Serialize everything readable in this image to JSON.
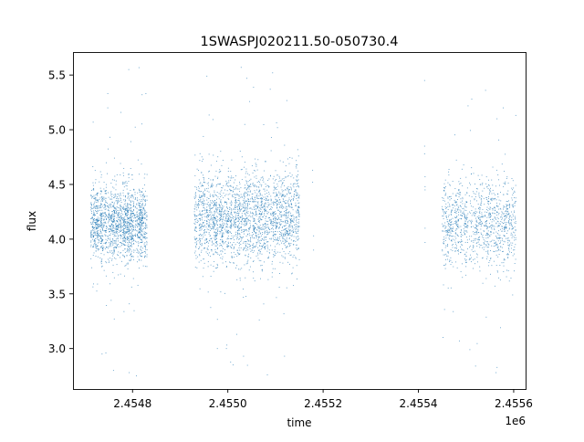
{
  "chart_data": {
    "type": "scatter",
    "title": "1SWASPJ020211.50-050730.4",
    "xlabel": "time",
    "ylabel": "flux",
    "x_offset_label": "1e6",
    "xlim": [
      2454675,
      2455625
    ],
    "ylim": [
      2.63,
      5.71
    ],
    "x_ticks": [
      {
        "value": 2454800,
        "label": "2.4548"
      },
      {
        "value": 2455000,
        "label": "2.4550"
      },
      {
        "value": 2455200,
        "label": "2.4552"
      },
      {
        "value": 2455400,
        "label": "2.4554"
      },
      {
        "value": 2455600,
        "label": "2.4556"
      }
    ],
    "y_ticks": [
      {
        "value": 3.0,
        "label": "3.0"
      },
      {
        "value": 3.5,
        "label": "3.5"
      },
      {
        "value": 4.0,
        "label": "4.0"
      },
      {
        "value": 4.5,
        "label": "4.5"
      },
      {
        "value": 5.0,
        "label": "5.0"
      },
      {
        "value": 5.5,
        "label": "5.5"
      }
    ],
    "grid": false,
    "marker_color": "#1f77b4",
    "clusters": [
      {
        "x_start": 2454713,
        "x_end": 2454830,
        "center": 4.15,
        "spread": 0.17,
        "density": 18
      },
      {
        "x_start": 2454930,
        "x_end": 2455150,
        "center": 4.2,
        "spread": 0.2,
        "density": 12
      },
      {
        "x_start": 2455450,
        "x_end": 2455607,
        "center": 4.15,
        "spread": 0.2,
        "density": 9
      }
    ],
    "points": [
      [
        2454792,
        5.55
      ],
      [
        2454748,
        5.33
      ],
      [
        2454748,
        5.2
      ],
      [
        2454820,
        5.32
      ],
      [
        2454828,
        5.33
      ],
      [
        2454793,
        2.78
      ],
      [
        2454808,
        2.75
      ],
      [
        2454760,
        2.8
      ],
      [
        2454736,
        2.95
      ],
      [
        2454744,
        2.96
      ],
      [
        2454956,
        5.49
      ],
      [
        2455028,
        5.57
      ],
      [
        2455040,
        5.47
      ],
      [
        2455094,
        5.52
      ],
      [
        2455089,
        5.37
      ],
      [
        2454978,
        3.0
      ],
      [
        2454997,
        3.0
      ],
      [
        2455033,
        2.93
      ],
      [
        2455083,
        2.76
      ],
      [
        2455119,
        2.93
      ],
      [
        2455178,
        4.63
      ],
      [
        2455178,
        4.52
      ],
      [
        2455180,
        4.03
      ],
      [
        2455180,
        3.9
      ],
      [
        2455413,
        4.85
      ],
      [
        2455413,
        4.78
      ],
      [
        2455414,
        4.57
      ],
      [
        2455414,
        4.45
      ],
      [
        2455414,
        4.48
      ],
      [
        2455414,
        4.1
      ],
      [
        2455414,
        3.97
      ],
      [
        2455413,
        5.45
      ],
      [
        2455541,
        5.36
      ],
      [
        2455578,
        5.2
      ],
      [
        2455565,
        5.1
      ],
      [
        2455512,
        5.28
      ],
      [
        2455486,
        3.07
      ],
      [
        2455520,
        2.84
      ],
      [
        2455563,
        2.78
      ],
      [
        2455508,
        2.99
      ]
    ]
  }
}
